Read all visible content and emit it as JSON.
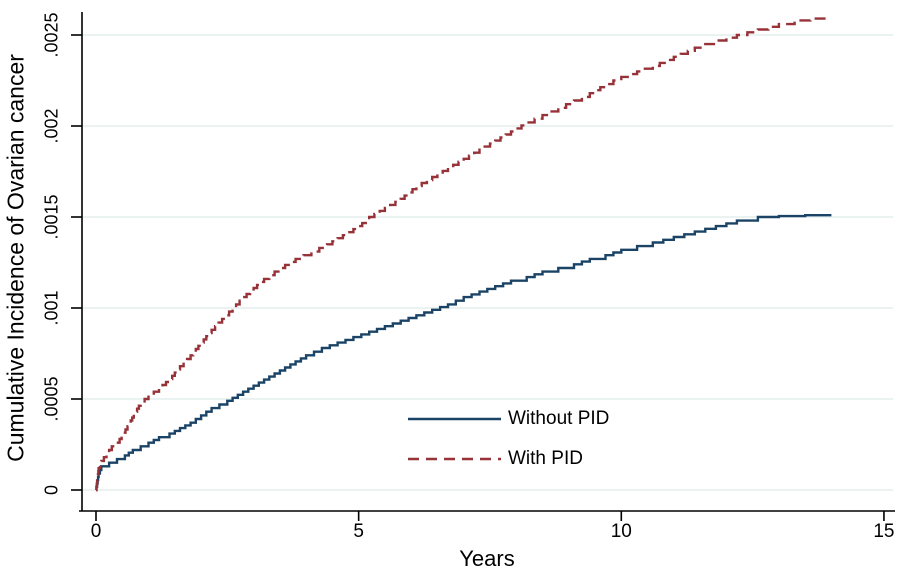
{
  "colors": {
    "background": "#ffffff",
    "axis": "#000000",
    "grid": "#e3edee",
    "without_pid_line": "#1a4366",
    "with_pid_line": "#963238",
    "text": "#000000"
  },
  "chart_data": {
    "type": "line",
    "subtype": "cumulative-incidence-step",
    "title": "",
    "xlabel": "Years",
    "ylabel": "Cumulative Incidence of Ovarian cancer",
    "xlim": [
      0,
      15
    ],
    "ylim": [
      0,
      0.0026
    ],
    "grid": true,
    "legend_position": "inside-bottom-center-right",
    "xtick_labels": [
      "0",
      "5",
      "10",
      "15"
    ],
    "xtick_values": [
      0,
      5,
      10,
      15
    ],
    "ytick_labels": [
      "0",
      ".0005",
      ".001",
      ".0015",
      ".002",
      ".0025"
    ],
    "ytick_values": [
      0,
      0.0005,
      0.001,
      0.0015,
      0.002,
      0.0025
    ],
    "series": [
      {
        "name": "Without PID",
        "style": "solid",
        "color": "#1a4366",
        "x": [
          0,
          0.05,
          0.1,
          0.25,
          0.4,
          0.55,
          0.7,
          0.85,
          1.0,
          1.2,
          1.4,
          1.6,
          1.8,
          2.0,
          2.2,
          2.5,
          2.8,
          3.1,
          3.4,
          3.7,
          4.0,
          4.3,
          4.6,
          4.9,
          5.2,
          5.5,
          5.8,
          6.1,
          6.4,
          6.7,
          7.0,
          7.3,
          7.6,
          7.9,
          8.2,
          8.5,
          8.8,
          9.1,
          9.4,
          9.7,
          10.0,
          10.3,
          10.6,
          11.0,
          11.4,
          11.8,
          12.2,
          12.6,
          13.0,
          13.5,
          14.0
        ],
        "y": [
          0,
          9e-05,
          0.00013,
          0.00015,
          0.00017,
          0.00019,
          0.00022,
          0.00024,
          0.00026,
          0.00029,
          0.00031,
          0.00034,
          0.00037,
          0.00041,
          0.00045,
          0.00049,
          0.00054,
          0.00059,
          0.00064,
          0.00069,
          0.00074,
          0.00078,
          0.00081,
          0.00084,
          0.00087,
          0.0009,
          0.00093,
          0.00096,
          0.00099,
          0.00102,
          0.00106,
          0.00109,
          0.00112,
          0.00115,
          0.00117,
          0.0012,
          0.00122,
          0.00124,
          0.00127,
          0.00129,
          0.00132,
          0.00134,
          0.00136,
          0.00139,
          0.00142,
          0.00145,
          0.00148,
          0.0015,
          0.001505,
          0.00151,
          0.00151
        ]
      },
      {
        "name": "With PID",
        "style": "dashed",
        "color": "#963238",
        "x": [
          0,
          0.05,
          0.1,
          0.2,
          0.3,
          0.45,
          0.6,
          0.75,
          0.85,
          1.0,
          1.2,
          1.4,
          1.6,
          1.8,
          2.0,
          2.2,
          2.4,
          2.6,
          2.8,
          3.0,
          3.2,
          3.5,
          3.8,
          4.1,
          4.4,
          4.7,
          5.0,
          5.2,
          5.5,
          5.8,
          6.1,
          6.4,
          6.7,
          7.0,
          7.3,
          7.6,
          7.9,
          8.2,
          8.5,
          8.8,
          9.1,
          9.4,
          9.7,
          10.0,
          10.3,
          10.6,
          11.0,
          11.4,
          11.8,
          12.2,
          12.6,
          13.0,
          13.3,
          13.6,
          14.0
        ],
        "y": [
          0,
          0.00012,
          0.00016,
          0.0002,
          0.00024,
          0.00028,
          0.00035,
          0.00043,
          0.00048,
          0.00052,
          0.00056,
          0.00061,
          0.00068,
          0.00074,
          0.00081,
          0.00088,
          0.00094,
          0.001,
          0.00106,
          0.00111,
          0.00116,
          0.00122,
          0.00127,
          0.00131,
          0.00135,
          0.0014,
          0.00145,
          0.0015,
          0.00155,
          0.0016,
          0.00167,
          0.00172,
          0.00177,
          0.00182,
          0.00187,
          0.00192,
          0.00197,
          0.00202,
          0.00206,
          0.0021,
          0.00214,
          0.00218,
          0.00223,
          0.00227,
          0.0023,
          0.00233,
          0.00238,
          0.00243,
          0.00247,
          0.0025,
          0.00253,
          0.00256,
          0.00258,
          0.00259,
          0.00259
        ]
      }
    ],
    "legend": [
      {
        "label": "Without PID"
      },
      {
        "label": "With PID"
      }
    ]
  }
}
